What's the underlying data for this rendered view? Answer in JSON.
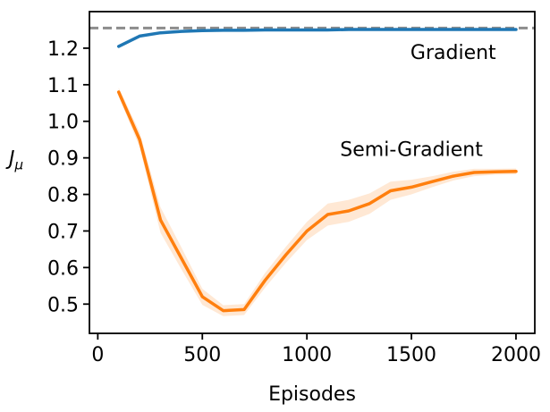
{
  "chart_data": {
    "type": "line",
    "title": "",
    "xlabel": "Episodes",
    "ylabel": "J_μ",
    "ylabel_rich": {
      "base": "J",
      "sub": "μ"
    },
    "xlim": [
      -40,
      2090
    ],
    "ylim": [
      0.42,
      1.3
    ],
    "xticks": [
      0,
      500,
      1000,
      1500,
      2000
    ],
    "yticks": [
      0.5,
      0.6,
      0.7,
      0.8,
      0.9,
      1.0,
      1.1,
      1.2
    ],
    "grid": false,
    "legend_position": "inline-annotations",
    "reference_line": {
      "y": 1.255,
      "style": "dashed",
      "color": "#8c8c8c"
    },
    "x": [
      100,
      200,
      300,
      400,
      500,
      600,
      700,
      800,
      900,
      1000,
      1100,
      1200,
      1300,
      1400,
      1500,
      1600,
      1700,
      1800,
      1900,
      2000
    ],
    "series": [
      {
        "name": "Gradient",
        "color": "#1f77b4",
        "values": [
          1.205,
          1.233,
          1.242,
          1.246,
          1.248,
          1.249,
          1.249,
          1.25,
          1.25,
          1.25,
          1.25,
          1.251,
          1.251,
          1.251,
          1.251,
          1.251,
          1.251,
          1.251,
          1.251,
          1.251
        ]
      },
      {
        "name": "Semi-Gradient",
        "color": "#ff7f0e",
        "values": [
          1.08,
          0.95,
          0.73,
          0.625,
          0.52,
          0.482,
          0.485,
          0.565,
          0.635,
          0.7,
          0.745,
          0.755,
          0.775,
          0.81,
          0.82,
          0.835,
          0.85,
          0.86,
          0.862,
          0.863
        ],
        "band_halfwidth": [
          0.012,
          0.02,
          0.035,
          0.03,
          0.022,
          0.015,
          0.015,
          0.02,
          0.022,
          0.025,
          0.03,
          0.03,
          0.028,
          0.025,
          0.02,
          0.015,
          0.012,
          0.01,
          0.008,
          0.008
        ],
        "band_opacity": 0.18
      }
    ],
    "annotations": [
      {
        "text": "Gradient",
        "x": 1700,
        "y": 1.19,
        "color": "#1f77b4"
      },
      {
        "text": "Semi-Gradient",
        "x": 1500,
        "y": 0.925,
        "color": "#ff7f0e"
      }
    ]
  },
  "style": {
    "spine_color": "#000000",
    "tick_color": "#000000"
  }
}
